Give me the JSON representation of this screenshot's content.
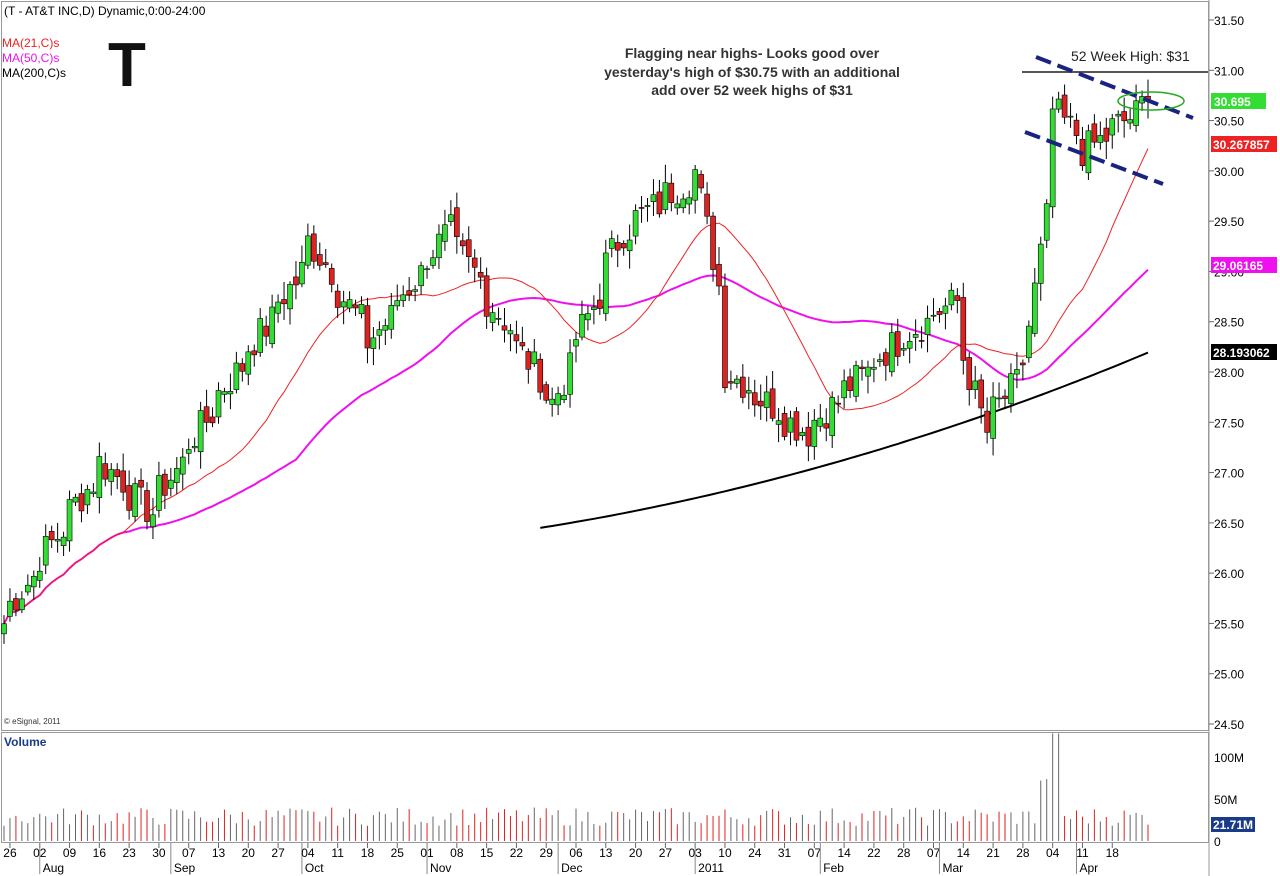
{
  "header": {
    "title": "(T - AT&T INC,D) Dynamic,0:00-24:00",
    "ticker_big": "T",
    "ma21_label": "MA(21,C)s",
    "ma50_label": "MA(50,C)s",
    "ma200_label": "MA(200,C)s",
    "copyright": "© eSignal, 2011"
  },
  "annotations": {
    "note_line1": "Flagging near highs- Looks good over",
    "note_line2": "yesterday's high of $30.75 with an additional",
    "note_line3": "add over 52 week highs of $31",
    "high_label": "52 Week High: $31"
  },
  "value_tags": {
    "last": "30.695",
    "ma21": "30.267857",
    "ma50": "29.06165",
    "ma200": "28.193062",
    "volume": "21.71M"
  },
  "volume_panel": {
    "label": "Volume",
    "ticks": [
      "100M",
      "50M",
      "0"
    ]
  },
  "colors": {
    "up": "#33dd33",
    "down": "#dd2222",
    "ma21": "#ee2222",
    "ma50": "#ee11ee",
    "ma200": "#000000",
    "channel": "#1a237e",
    "ellipse": "#22aa22"
  },
  "chart_data": {
    "type": "candlestick",
    "title": "(T - AT&T INC,D) Dynamic,0:00-24:00",
    "y_ticks": [
      "31.50",
      "31.00",
      "30.50",
      "30.00",
      "29.50",
      "29.00",
      "28.50",
      "28.00",
      "27.50",
      "27.00",
      "26.50",
      "26.00",
      "25.50",
      "25.00",
      "24.50"
    ],
    "ylim": [
      24.5,
      31.5
    ],
    "x_day_labels": [
      "26",
      "02",
      "09",
      "16",
      "23",
      "30",
      "07",
      "13",
      "20",
      "27",
      "04",
      "11",
      "18",
      "25",
      "01",
      "08",
      "15",
      "22",
      "29",
      "06",
      "13",
      "20",
      "27",
      "03",
      "10",
      "24",
      "31",
      "07",
      "14",
      "22",
      "28",
      "07",
      "14",
      "21",
      "28",
      "04",
      "11",
      "18"
    ],
    "x_month_labels": [
      "Aug",
      "Sep",
      "Oct",
      "Nov",
      "Dec",
      "2011",
      "Feb",
      "Mar",
      "Apr"
    ],
    "key_points": [
      {
        "date": "2010-07-23",
        "close": 25.5
      },
      {
        "date": "2010-08-16",
        "close": 27.1
      },
      {
        "date": "2010-08-27",
        "close": 26.6
      },
      {
        "date": "2010-09-13",
        "close": 27.8
      },
      {
        "date": "2010-09-30",
        "close": 28.9
      },
      {
        "date": "2010-10-04",
        "close": 29.3
      },
      {
        "date": "2010-10-18",
        "close": 28.3
      },
      {
        "date": "2010-11-05",
        "close": 29.4
      },
      {
        "date": "2010-11-30",
        "close": 27.7
      },
      {
        "date": "2010-12-16",
        "close": 29.4
      },
      {
        "date": "2011-01-03",
        "close": 30.0
      },
      {
        "date": "2011-01-10",
        "close": 28.0
      },
      {
        "date": "2011-01-28",
        "close": 27.4
      },
      {
        "date": "2011-02-18",
        "close": 28.3
      },
      {
        "date": "2011-03-04",
        "close": 28.7
      },
      {
        "date": "2011-03-11",
        "close": 27.4
      },
      {
        "date": "2011-03-21",
        "close": 28.1
      },
      {
        "date": "2011-03-28",
        "close": 30.6
      },
      {
        "date": "2011-04-04",
        "close": 30.2
      },
      {
        "date": "2011-04-19",
        "close": 30.695
      }
    ],
    "week52_high": 31.0,
    "ma_last": {
      "ma21": 30.267857,
      "ma50": 29.06165,
      "ma200": 28.193062
    },
    "volume_last": "21.71M",
    "volume_ylim": [
      0,
      130
    ]
  }
}
